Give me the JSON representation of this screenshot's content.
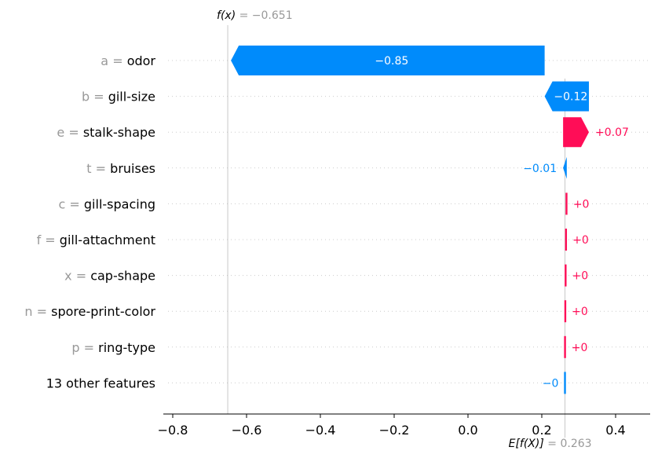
{
  "chart_data": {
    "type": "waterfall",
    "fx": {
      "label": "f(x)",
      "value_text": "= −0.651",
      "value": -0.651
    },
    "efx": {
      "label": "E[f(X)]",
      "value_text": "= 0.263",
      "value": 0.263
    },
    "features": [
      {
        "value": "a",
        "name": "odor",
        "shap": -0.85,
        "label": "−0.85",
        "label_inside": true
      },
      {
        "value": "b",
        "name": "gill-size",
        "shap": -0.12,
        "label": "−0.12",
        "label_inside": true
      },
      {
        "value": "e",
        "name": "stalk-shape",
        "shap": 0.07,
        "label": "+0.07",
        "label_inside": false
      },
      {
        "value": "t",
        "name": "bruises",
        "shap": -0.01,
        "label": "−0.01",
        "label_inside": false
      },
      {
        "value": "c",
        "name": "gill-spacing",
        "shap": 0.0015,
        "label": "+0",
        "label_inside": false
      },
      {
        "value": "f",
        "name": "gill-attachment",
        "shap": 0.0012,
        "label": "+0",
        "label_inside": false
      },
      {
        "value": "x",
        "name": "cap-shape",
        "shap": 0.0009,
        "label": "+0",
        "label_inside": false
      },
      {
        "value": "n",
        "name": "spore-print-color",
        "shap": 0.0008,
        "label": "+0",
        "label_inside": false
      },
      {
        "value": "p",
        "name": "ring-type",
        "shap": 0.0007,
        "label": "+0",
        "label_inside": false
      },
      {
        "value": "",
        "name": "13 other features",
        "shap": -0.0004,
        "label": "−0",
        "label_inside": false
      }
    ],
    "xaxis": {
      "ticks": [
        -0.8,
        -0.6,
        -0.4,
        -0.2,
        0.0,
        0.2,
        0.4
      ],
      "tick_labels": [
        "−0.8",
        "−0.6",
        "−0.4",
        "−0.2",
        "0.0",
        "0.2",
        "0.4"
      ],
      "xlim": [
        -0.84,
        0.47
      ]
    },
    "colors": {
      "positive": "#ff0d57",
      "negative": "#008bfb",
      "muted": "#999999",
      "grid": "#cccccc"
    }
  }
}
